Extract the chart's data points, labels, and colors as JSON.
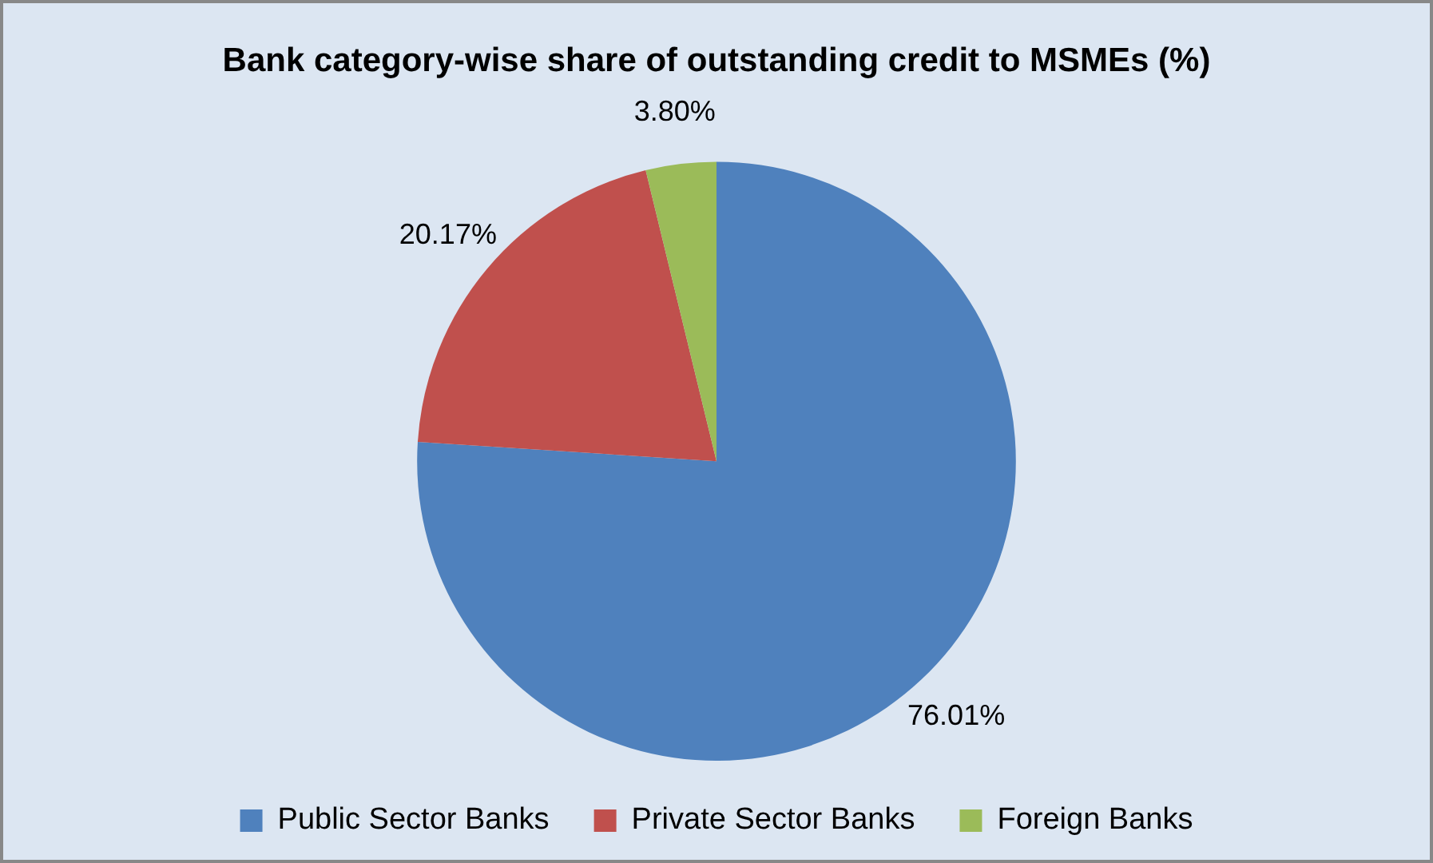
{
  "chart_data": {
    "type": "pie",
    "title": "Bank category-wise share of outstanding credit to MSMEs (%)",
    "categories": [
      "Public Sector Banks",
      "Private Sector Banks",
      "Foreign Banks"
    ],
    "values": [
      76.01,
      20.17,
      3.8
    ],
    "colors": [
      "#4f81bd",
      "#c0504d",
      "#9bbb59"
    ],
    "value_labels": [
      "76.01%",
      "20.17%",
      "3.80%"
    ],
    "legend": "bottom"
  }
}
